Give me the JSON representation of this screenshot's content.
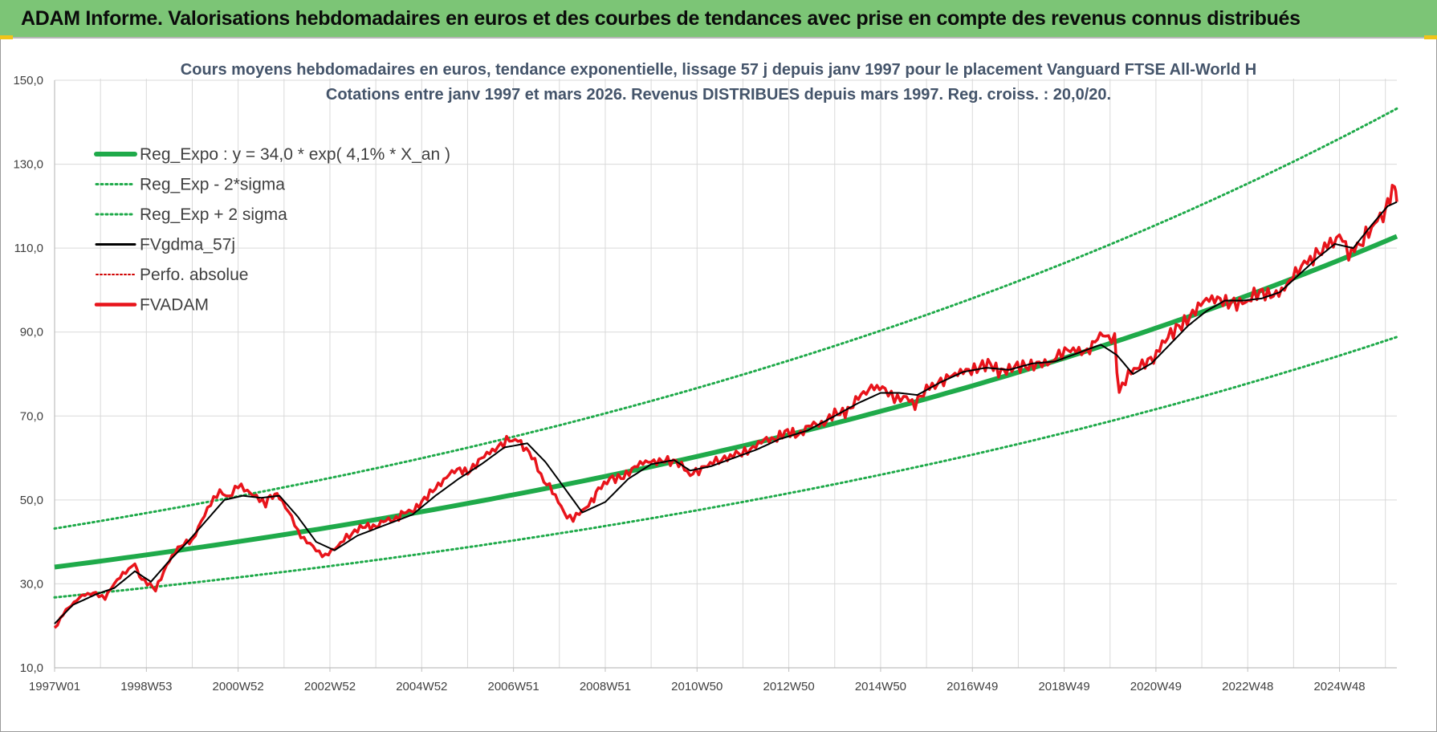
{
  "banner": {
    "title": "ADAM Informe. Valorisations hebdomadaires en euros et des courbes de tendances avec prise en compte des revenus connus distribués"
  },
  "colors": {
    "banner_bg": "#7cc576",
    "trend": "#1faa4a",
    "band": "#1faa4a",
    "smooth": "#000000",
    "perfo": "#d00000",
    "fvadam": "#e8141b",
    "grid": "#d9d9d9"
  },
  "chart_data": {
    "type": "line",
    "title": "Cours moyens hebdomadaires en euros, tendance exponentielle, lissage 57 j depuis janv 1997 pour le placement Vanguard FTSE All-World H",
    "subtitle": "Cotations entre janv 1997 et mars 2026. Revenus DISTRIBUES depuis mars 1997. Reg. croiss. : 20,0/20.",
    "xlabel": "",
    "ylabel": "",
    "xlim": [
      1997.0,
      2026.25
    ],
    "ylim": [
      10,
      150
    ],
    "yticks": [
      "10,0",
      "30,0",
      "50,0",
      "70,0",
      "90,0",
      "110,0",
      "130,0",
      "150,0"
    ],
    "xticks": [
      {
        "label": "1997W01",
        "x": 1997.0
      },
      {
        "label": "1998W53",
        "x": 1999.0
      },
      {
        "label": "2000W52",
        "x": 2001.0
      },
      {
        "label": "2002W52",
        "x": 2003.0
      },
      {
        "label": "2004W52",
        "x": 2005.0
      },
      {
        "label": "2006W51",
        "x": 2007.0
      },
      {
        "label": "2008W51",
        "x": 2009.0
      },
      {
        "label": "2010W50",
        "x": 2011.0
      },
      {
        "label": "2012W50",
        "x": 2013.0
      },
      {
        "label": "2014W50",
        "x": 2015.0
      },
      {
        "label": "2016W49",
        "x": 2017.0
      },
      {
        "label": "2018W49",
        "x": 2019.0
      },
      {
        "label": "2020W49",
        "x": 2021.0
      },
      {
        "label": "2022W48",
        "x": 2023.0
      },
      {
        "label": "2024W48",
        "x": 2025.0
      }
    ],
    "trend": {
      "a": 34.0,
      "rate": 0.041,
      "sigma_factor": 1.27
    },
    "legend": [
      {
        "label": "Reg_Expo : y = 34,0 * exp( 4,1% *  X_an )",
        "style": "trend"
      },
      {
        "label": "Reg_Exp - 2*sigma",
        "style": "band"
      },
      {
        "label": "Reg_Exp + 2 sigma",
        "style": "band"
      },
      {
        "label": "FVgdma_57j",
        "style": "smooth"
      },
      {
        "label": "Perfo. absolue",
        "style": "perfo"
      },
      {
        "label": "FVADAM",
        "style": "fvadam"
      }
    ],
    "series": [
      {
        "name": "FVADAM",
        "x": [
          1997.0,
          1997.25,
          1997.6,
          1997.9,
          1998.1,
          1998.3,
          1998.55,
          1998.75,
          1998.9,
          1999.2,
          1999.5,
          1999.75,
          2000.0,
          2000.2,
          2000.4,
          2000.6,
          2000.8,
          2001.0,
          2001.2,
          2001.4,
          2001.6,
          2001.75,
          2001.9,
          2002.1,
          2002.3,
          2002.5,
          2002.7,
          2002.9,
          2003.1,
          2003.3,
          2003.6,
          2004.0,
          2004.5,
          2005.0,
          2005.3,
          2005.6,
          2006.0,
          2006.3,
          2006.6,
          2006.85,
          2007.1,
          2007.4,
          2007.6,
          2007.85,
          2008.1,
          2008.3,
          2008.5,
          2008.7,
          2008.85,
          2009.1,
          2009.4,
          2009.7,
          2010.0,
          2010.3,
          2010.6,
          2010.85,
          2011.1,
          2011.35,
          2011.6,
          2011.85,
          2012.1,
          2012.4,
          2012.8,
          2013.2,
          2013.6,
          2014.0,
          2014.4,
          2014.8,
          2015.1,
          2015.3,
          2015.5,
          2015.75,
          2016.0,
          2016.25,
          2016.5,
          2016.8,
          2017.1,
          2017.4,
          2017.8,
          2018.1,
          2018.4,
          2018.7,
          2018.95,
          2019.2,
          2019.5,
          2019.9,
          2020.1,
          2020.2,
          2020.4,
          2020.7,
          2020.95,
          2021.2,
          2021.5,
          2021.8,
          2022.1,
          2022.4,
          2022.7,
          2022.95,
          2023.2,
          2023.5,
          2023.8,
          2024.1,
          2024.3,
          2024.55,
          2024.8,
          2025.0,
          2025.2,
          2025.45,
          2025.7,
          2025.95,
          2026.05,
          2026.2,
          2026.25
        ],
        "values": [
          19.5,
          24,
          27,
          28,
          26.5,
          30,
          33,
          34.5,
          31,
          28.5,
          36,
          39.5,
          40.5,
          45,
          50,
          52,
          51,
          53,
          52,
          50,
          49,
          51.5,
          50.5,
          47,
          42,
          40,
          38,
          37,
          38.5,
          41,
          43,
          44,
          46,
          49,
          53,
          56.5,
          57,
          60,
          61.5,
          64,
          64.5,
          61,
          56,
          52.5,
          47,
          45.5,
          48,
          50,
          52,
          55,
          56,
          58,
          59,
          60,
          58.5,
          55.5,
          57,
          59,
          60,
          61.5,
          62,
          63.5,
          65.5,
          66,
          68,
          70,
          72.5,
          77.5,
          76,
          73.5,
          75,
          72.5,
          76,
          77,
          79,
          81.5,
          81,
          82,
          80.5,
          82,
          83,
          82,
          84.5,
          85.5,
          86,
          89.5,
          88,
          76,
          81,
          82,
          83,
          87.5,
          92,
          94.5,
          97,
          98.5,
          97,
          96.5,
          98.5,
          99,
          101,
          104,
          106,
          108,
          110.5,
          112,
          108,
          110,
          114,
          118,
          121,
          124,
          121
        ]
      },
      {
        "name": "FVgdma_57j",
        "x": [
          1997.0,
          1997.4,
          1997.9,
          1998.3,
          1998.75,
          1999.1,
          1999.5,
          1999.9,
          2000.3,
          2000.7,
          2001.1,
          2001.5,
          2001.9,
          2002.3,
          2002.7,
          2003.1,
          2003.6,
          2004.2,
          2004.8,
          2005.3,
          2005.8,
          2006.3,
          2006.8,
          2007.3,
          2007.7,
          2008.1,
          2008.5,
          2009.0,
          2009.5,
          2010.0,
          2010.5,
          2010.85,
          2011.3,
          2011.8,
          2012.3,
          2012.8,
          2013.4,
          2014.0,
          2014.5,
          2015.0,
          2015.4,
          2015.8,
          2016.3,
          2016.8,
          2017.3,
          2017.8,
          2018.3,
          2018.8,
          2019.3,
          2019.8,
          2020.15,
          2020.5,
          2020.9,
          2021.3,
          2021.7,
          2022.1,
          2022.5,
          2022.9,
          2023.3,
          2023.7,
          2024.1,
          2024.5,
          2024.9,
          2025.3,
          2025.7,
          2026.05,
          2026.25
        ],
        "values": [
          20.5,
          25,
          27.5,
          29,
          33,
          30.5,
          35.5,
          40,
          45,
          50,
          51,
          50.5,
          51,
          46,
          40,
          38,
          41.5,
          44,
          46.5,
          51,
          55,
          58.5,
          62.5,
          63.5,
          59,
          53,
          47,
          49.5,
          55,
          58.5,
          59.5,
          57,
          58,
          60,
          62,
          64.5,
          66.5,
          70,
          73,
          75.5,
          75.5,
          75,
          78,
          80.5,
          81.5,
          81,
          82.5,
          83,
          85,
          87,
          84.5,
          80,
          82.5,
          87,
          91.5,
          95,
          97.5,
          97.5,
          98,
          99.5,
          103.5,
          107.5,
          111,
          110,
          115.5,
          120,
          121
        ]
      }
    ]
  }
}
